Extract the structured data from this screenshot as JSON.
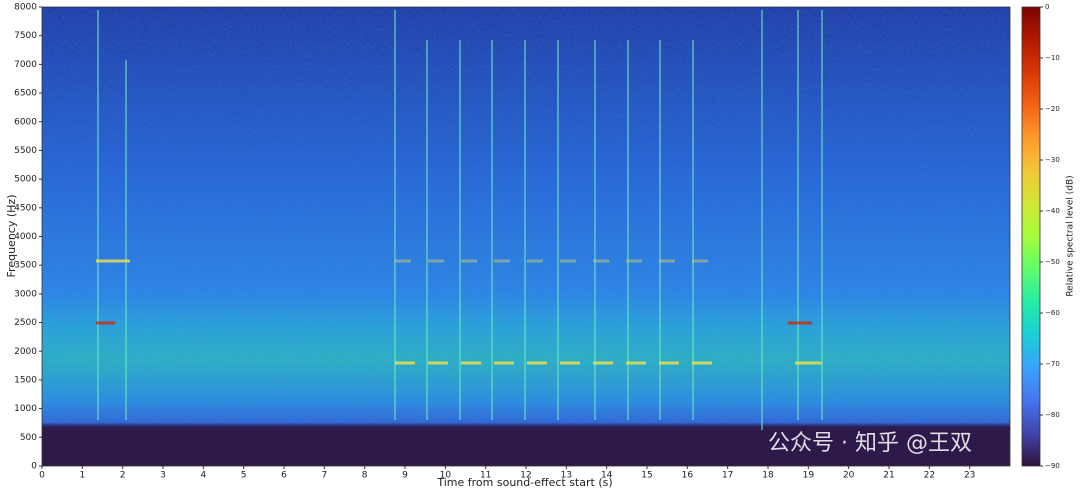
{
  "chart_data": {
    "type": "spectrogram",
    "xlabel": "Time from sound-effect start (s)",
    "ylabel": "Frequency (Hz)",
    "xlim": [
      0,
      24
    ],
    "ylim": [
      0,
      8000
    ],
    "xticks": [
      0,
      1,
      2,
      3,
      4,
      5,
      6,
      7,
      8,
      9,
      10,
      11,
      12,
      13,
      14,
      15,
      16,
      17,
      18,
      19,
      20,
      21,
      22,
      23
    ],
    "yticks": [
      0,
      500,
      1000,
      1500,
      2000,
      2500,
      3000,
      3500,
      4000,
      4500,
      5000,
      5500,
      6000,
      6500,
      7000,
      7500,
      8000
    ],
    "colormap": "turbo",
    "colorbar": {
      "label": "Relative spectral level (dB)",
      "clim": [
        -90,
        0
      ],
      "ticks": [
        0,
        {
          "value": -10,
          "label": "−10"
        },
        {
          "value": -20,
          "label": "−20"
        },
        {
          "value": -30,
          "label": "−30"
        },
        {
          "value": -40,
          "label": "−40"
        },
        {
          "value": -50,
          "label": "−50"
        },
        {
          "value": -60,
          "label": "−60"
        },
        {
          "value": -70,
          "label": "−70"
        },
        {
          "value": -80,
          "label": "−80"
        },
        {
          "value": -90,
          "label": "−90"
        }
      ]
    },
    "watermark": "公众号 · 知乎 @王双"
  }
}
